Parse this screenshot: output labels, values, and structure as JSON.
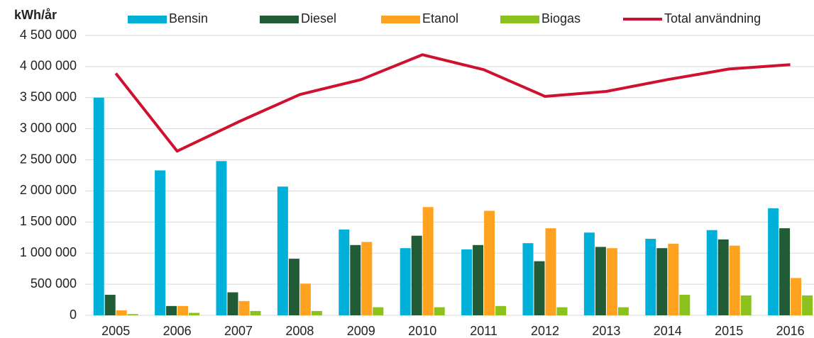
{
  "chart_data": {
    "type": "bar",
    "y_label": "kWh/år",
    "categories": [
      "2005",
      "2006",
      "2007",
      "2008",
      "2009",
      "2010",
      "2011",
      "2012",
      "2013",
      "2014",
      "2015",
      "2016"
    ],
    "series": [
      {
        "name": "Bensin",
        "color": "#00b0d8",
        "type": "bar",
        "values": [
          3500000,
          2330000,
          2480000,
          2070000,
          1380000,
          1080000,
          1060000,
          1160000,
          1330000,
          1230000,
          1370000,
          1720000
        ]
      },
      {
        "name": "Diesel",
        "color": "#215c37",
        "type": "bar",
        "values": [
          330000,
          150000,
          370000,
          910000,
          1130000,
          1280000,
          1130000,
          870000,
          1100000,
          1080000,
          1220000,
          1400000
        ]
      },
      {
        "name": "Etanol",
        "color": "#ffa21f",
        "type": "bar",
        "values": [
          80000,
          150000,
          230000,
          510000,
          1180000,
          1740000,
          1680000,
          1400000,
          1080000,
          1150000,
          1120000,
          600000
        ]
      },
      {
        "name": "Biogas",
        "color": "#8cc21d",
        "type": "bar",
        "values": [
          20000,
          40000,
          70000,
          70000,
          130000,
          130000,
          150000,
          130000,
          130000,
          330000,
          320000,
          320000
        ]
      },
      {
        "name": "Total användning",
        "color": "#d0102f",
        "type": "line",
        "values": [
          3890000,
          2640000,
          3110000,
          3550000,
          3790000,
          4190000,
          3950000,
          3520000,
          3600000,
          3790000,
          3960000,
          4030000
        ]
      }
    ],
    "ylim": [
      0,
      4500000
    ],
    "yticks": [
      0,
      {
        "value": 500000,
        "label": "500 000"
      },
      {
        "value": 1000000,
        "label": "1 000 000"
      },
      {
        "value": 1500000,
        "label": "1 500 000"
      },
      {
        "value": 2000000,
        "label": "2 000 000"
      },
      {
        "value": 2500000,
        "label": "2 500 000"
      },
      {
        "value": 3000000,
        "label": "3 000 000"
      },
      {
        "value": 3500000,
        "label": "3 500 000"
      },
      {
        "value": 4000000,
        "label": "4 000 000"
      },
      {
        "value": 4500000,
        "label": "4 500 000"
      }
    ],
    "grid": true
  }
}
